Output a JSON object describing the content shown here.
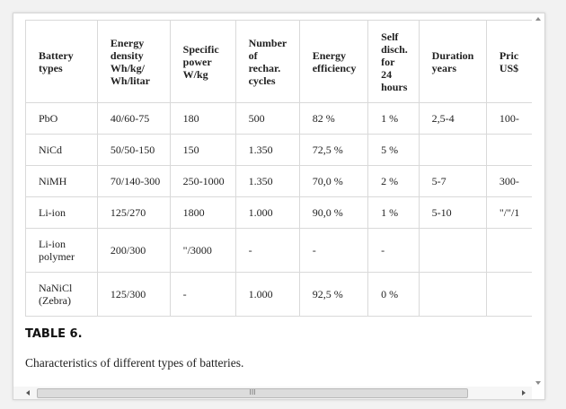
{
  "table": {
    "headers": [
      "Battery\ntypes",
      "Energy\ndensity\nWh/kg/\nWh/litar",
      "Specific\npower\nW/kg",
      "Number\nof\nrechar.\ncycles",
      "Energy\nefficiency",
      "Self\ndisch.\nfor\n24\nhours",
      "Duration\nyears",
      "Pric\nUS$"
    ],
    "rows": [
      [
        "PbO",
        "40/60-75",
        "180",
        "500",
        "82 %",
        "1 %",
        "2,5-4",
        "100-"
      ],
      [
        "NiCd",
        "50/50-150",
        "150",
        "1.350",
        "72,5 %",
        "5 %",
        "",
        ""
      ],
      [
        "NiMH",
        "70/140-300",
        "250-1000",
        "1.350",
        "70,0 %",
        "2 %",
        "5-7",
        "300-"
      ],
      [
        "Li-ion",
        "125/270",
        "1800",
        "1.000",
        "90,0 %",
        "1 %",
        "5-10",
        "\"/\"/1"
      ],
      [
        "Li-ion\npolymer",
        "200/300",
        "\"/3000",
        "-",
        "-",
        "-",
        "",
        ""
      ],
      [
        "NaNiCl\n(Zebra)",
        "125/300",
        "-",
        "1.000",
        "92,5 %",
        "0 %",
        "",
        ""
      ]
    ]
  },
  "caption": {
    "title": "TABLE 6.",
    "text": "Characteristics of different types of batteries."
  },
  "scrollbar": {
    "thumb_grip": "III"
  }
}
